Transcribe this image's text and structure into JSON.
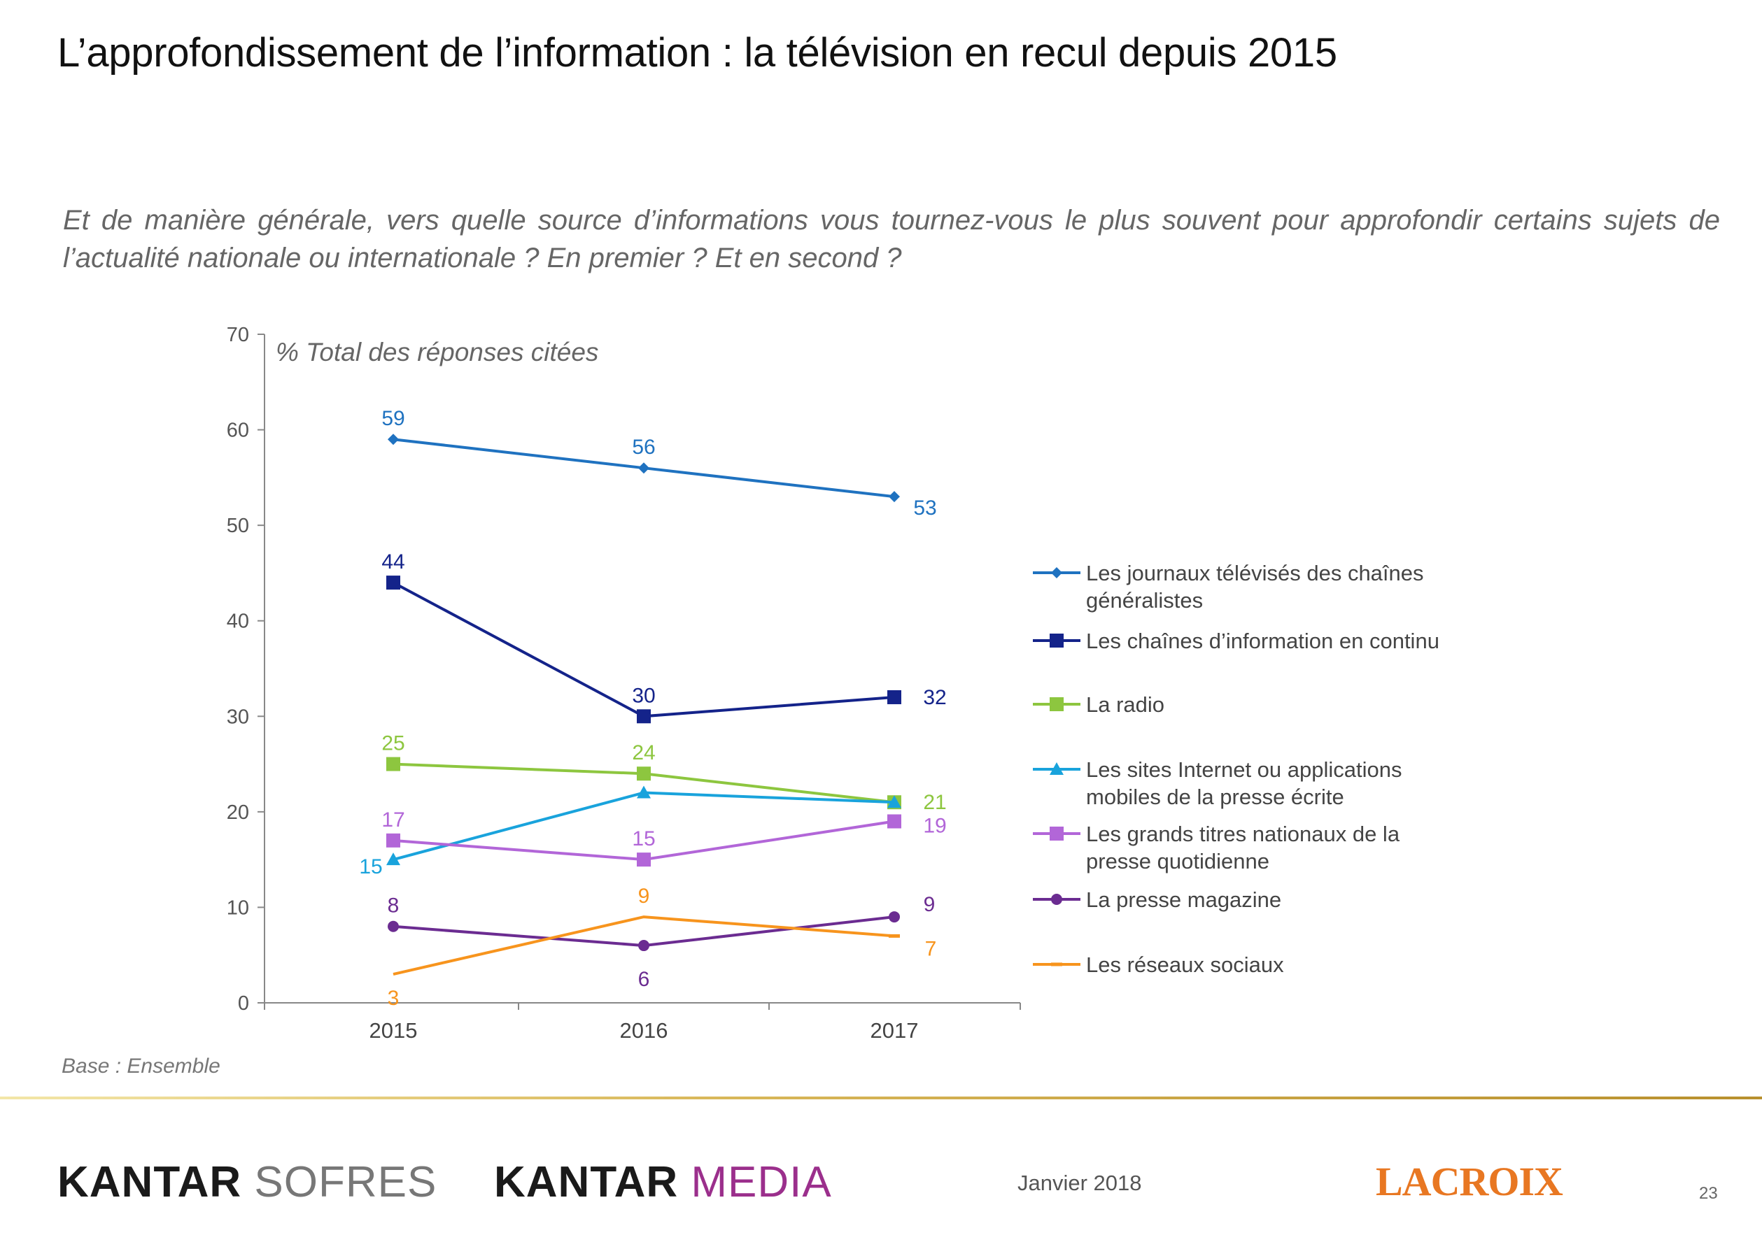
{
  "header": {
    "title": "L’approfondissement de l’information : la télévision en recul depuis 2015",
    "question": "Et de manière générale, vers quelle source d’informations vous tournez-vous le plus souvent  pour approfondir certains sujets de l’actualité nationale ou internationale ? En premier ? Et en second ?"
  },
  "chart_data": {
    "type": "line",
    "unit_label": "% Total des réponses citées",
    "categories": [
      "2015",
      "2016",
      "2017"
    ],
    "ylim": [
      0,
      70
    ],
    "yticks": [
      0,
      10,
      20,
      30,
      40,
      50,
      60,
      70
    ],
    "grid": false,
    "legend_position": "right",
    "series": [
      {
        "name": "Les journaux télévisés des chaînes généralistes",
        "legend_lines": [
          "Les journaux télévisés des chaînes",
          "généralistes"
        ],
        "values": [
          59,
          56,
          53
        ],
        "color": "#1f72c0",
        "marker": "diamond"
      },
      {
        "name": "Les chaînes d’information en continu",
        "legend_lines": [
          "Les chaînes  d’information  en continu"
        ],
        "values": [
          44,
          30,
          32
        ],
        "color": "#14238a",
        "marker": "square"
      },
      {
        "name": "La radio",
        "legend_lines": [
          "La radio"
        ],
        "values": [
          25,
          24,
          21
        ],
        "color": "#8dc63f",
        "marker": "square"
      },
      {
        "name": "Les sites Internet ou applications mobiles de la presse écrite",
        "legend_lines": [
          "Les sites Internet ou applications",
          "mobiles de la presse écrite"
        ],
        "values": [
          15,
          22,
          21
        ],
        "color": "#19a3dc",
        "marker": "triangle",
        "labels": [
          "15",
          "",
          ""
        ]
      },
      {
        "name": "Les grands titres nationaux de la presse quotidienne",
        "legend_lines": [
          "Les grands titres nationaux de la",
          "presse quotidienne"
        ],
        "values": [
          17,
          15,
          19
        ],
        "color": "#b266d8",
        "marker": "square"
      },
      {
        "name": "La presse magazine",
        "legend_lines": [
          "La presse magazine"
        ],
        "values": [
          8,
          6,
          9
        ],
        "color": "#6b2c91",
        "marker": "circle"
      },
      {
        "name": "Les réseaux sociaux",
        "legend_lines": [
          "Les réseaux sociaux"
        ],
        "values": [
          3,
          9,
          7
        ],
        "color": "#f7941d",
        "marker": "dash"
      }
    ]
  },
  "footer": {
    "base_note": "Base : Ensemble",
    "logo_sofres": {
      "part1": "KANTAR",
      "part2": "SOFRES"
    },
    "logo_media": {
      "part1": "KANTAR",
      "part2": "MEDIA"
    },
    "date": "Janvier 2018",
    "logo_croix": "LACROIX",
    "page_number": "23"
  }
}
